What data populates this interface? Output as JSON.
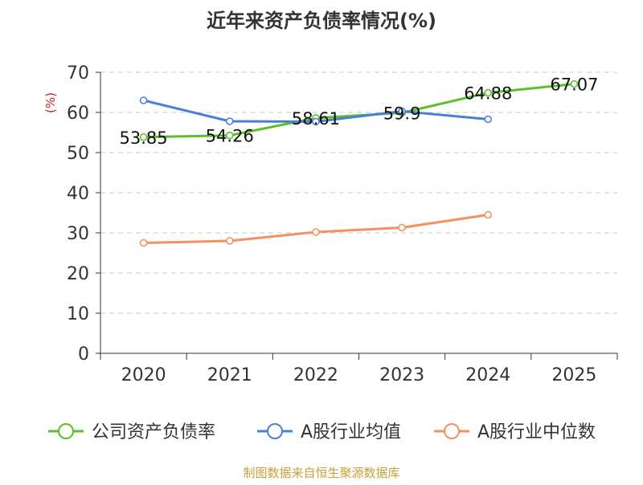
{
  "chart_data": {
    "type": "line",
    "title": "近年来资产负债率情况(%)",
    "ylabel": "(%)",
    "xlabel": "",
    "categories": [
      "2020",
      "2021",
      "2022",
      "2023",
      "2024",
      "2025"
    ],
    "ylim": [
      0,
      70
    ],
    "yticks": [
      0,
      10,
      20,
      30,
      40,
      50,
      60,
      70
    ],
    "grid": true,
    "legend_position": "bottom",
    "series": [
      {
        "name": "公司资产负债率",
        "color": "#5cbf2a",
        "values": [
          53.85,
          54.26,
          58.61,
          59.9,
          64.88,
          67.07
        ],
        "labels": [
          "53.85",
          "54.26",
          "58.61",
          "59.9",
          "64.88",
          "67.07"
        ]
      },
      {
        "name": "A股行业均值",
        "color": "#4a7fd8",
        "values": [
          63.0,
          57.8,
          57.7,
          60.3,
          58.3,
          null
        ]
      },
      {
        "name": "A股行业中位数",
        "color": "#f59062",
        "values": [
          27.5,
          28.0,
          30.2,
          31.3,
          34.5,
          null
        ]
      }
    ],
    "source": "制图数据来自恒生聚源数据库"
  }
}
